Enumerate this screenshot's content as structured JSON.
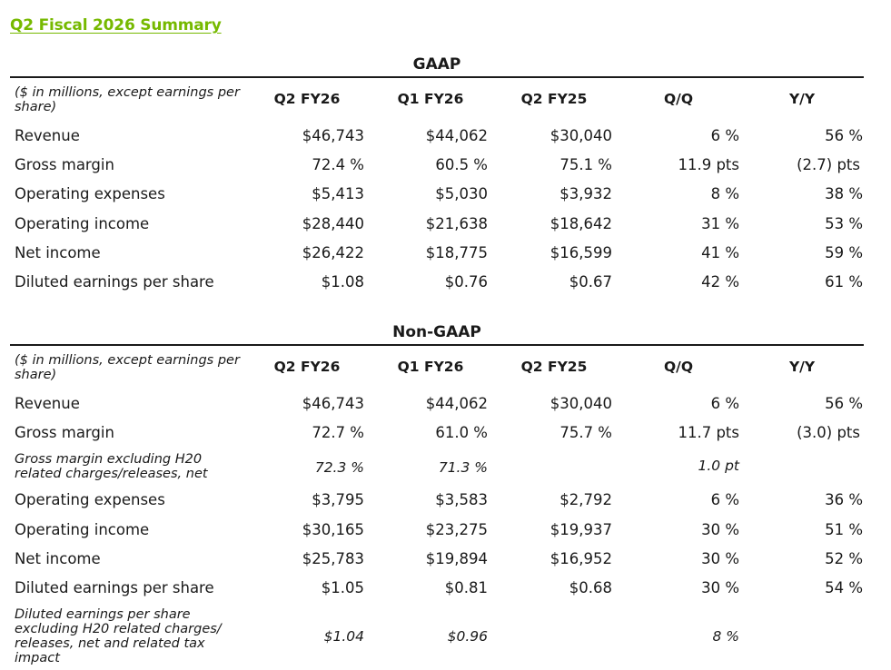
{
  "title": "Q2 Fiscal 2026 Summary",
  "sections": [
    {
      "heading": "GAAP",
      "header_label": "($ in millions, except earnings per share)",
      "columns": [
        "Q2 FY26",
        "Q1 FY26",
        "Q2 FY25",
        "Q/Q",
        "Y/Y"
      ],
      "rows": [
        {
          "label": "Revenue",
          "values": [
            "$46,743",
            "$44,062",
            "$30,040",
            "6 %",
            "56 %"
          ]
        },
        {
          "label": "Gross margin",
          "values": [
            "72.4 %",
            "60.5 %",
            "75.1 %",
            "11.9 pts",
            "(2.7) pts"
          ]
        },
        {
          "label": "Operating expenses",
          "values": [
            "$5,413",
            "$5,030",
            "$3,932",
            "8 %",
            "38 %"
          ]
        },
        {
          "label": "Operating income",
          "values": [
            "$28,440",
            "$21,638",
            "$18,642",
            "31 %",
            "53 %"
          ]
        },
        {
          "label": "Net income",
          "values": [
            "$26,422",
            "$18,775",
            "$16,599",
            "41 %",
            "59 %"
          ]
        },
        {
          "label": "Diluted earnings per share",
          "values": [
            "$1.08",
            "$0.76",
            "$0.67",
            "42 %",
            "61 %"
          ]
        }
      ]
    },
    {
      "heading": "Non-GAAP",
      "header_label": "($ in millions, except earnings per share)",
      "columns": [
        "Q2 FY26",
        "Q1 FY26",
        "Q2 FY25",
        "Q/Q",
        "Y/Y"
      ],
      "rows": [
        {
          "label": "Revenue",
          "values": [
            "$46,743",
            "$44,062",
            "$30,040",
            "6 %",
            "56 %"
          ]
        },
        {
          "label": "Gross margin",
          "values": [
            "72.7 %",
            "61.0 %",
            "75.7 %",
            "11.7 pts",
            "(3.0) pts"
          ]
        },
        {
          "label": "Gross margin excluding H20 related charges/releases, net",
          "values": [
            "72.3 %",
            "71.3 %",
            "",
            "1.0 pt",
            ""
          ],
          "italic": true
        },
        {
          "label": "Operating expenses",
          "values": [
            "$3,795",
            "$3,583",
            "$2,792",
            "6 %",
            "36 %"
          ]
        },
        {
          "label": "Operating income",
          "values": [
            "$30,165",
            "$23,275",
            "$19,937",
            "30 %",
            "51 %"
          ]
        },
        {
          "label": "Net income",
          "values": [
            "$25,783",
            "$19,894",
            "$16,952",
            "30 %",
            "52 %"
          ]
        },
        {
          "label": "Diluted earnings per share",
          "values": [
            "$1.05",
            "$0.81",
            "$0.68",
            "30 %",
            "54 %"
          ]
        },
        {
          "label": "Diluted earnings per share excluding H20 related charges/ releases, net and related tax impact",
          "values": [
            "$1.04",
            "$0.96",
            "",
            "8 %",
            ""
          ],
          "italic": true
        }
      ]
    }
  ]
}
